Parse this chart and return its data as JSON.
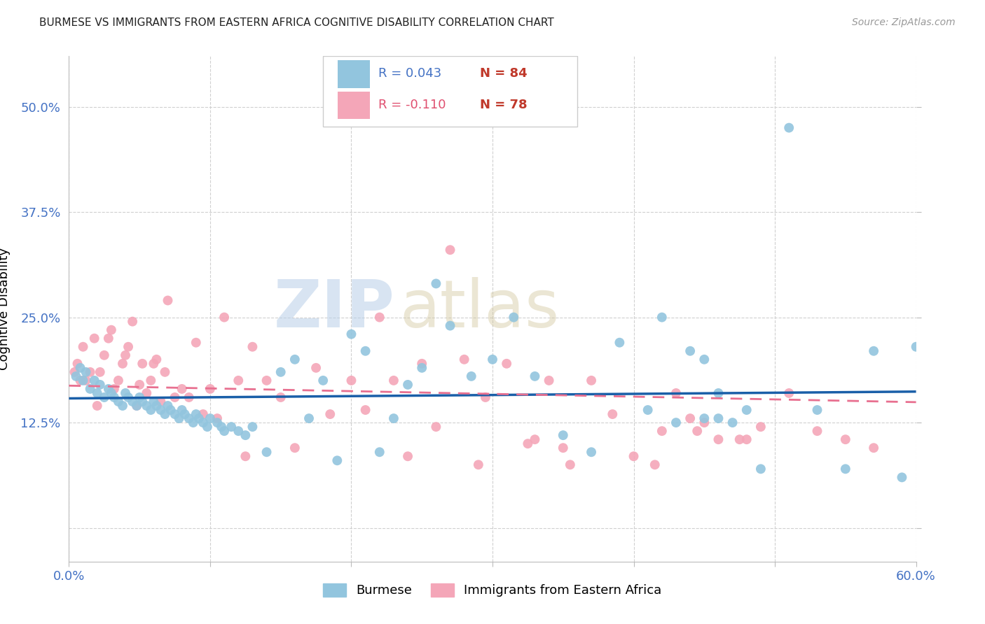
{
  "title": "BURMESE VS IMMIGRANTS FROM EASTERN AFRICA COGNITIVE DISABILITY CORRELATION CHART",
  "source": "Source: ZipAtlas.com",
  "ylabel": "Cognitive Disability",
  "xlim": [
    0.0,
    0.6
  ],
  "ylim": [
    -0.04,
    0.56
  ],
  "yticks": [
    0.0,
    0.125,
    0.25,
    0.375,
    0.5
  ],
  "ytick_labels": [
    "",
    "12.5%",
    "25.0%",
    "37.5%",
    "50.0%"
  ],
  "xticks": [
    0.0,
    0.1,
    0.2,
    0.3,
    0.4,
    0.5,
    0.6
  ],
  "xtick_labels": [
    "0.0%",
    "",
    "",
    "",
    "",
    "",
    "60.0%"
  ],
  "blue_R": 0.043,
  "blue_N": 84,
  "pink_R": -0.11,
  "pink_N": 78,
  "blue_color": "#92c5de",
  "pink_color": "#f4a6b8",
  "blue_line_color": "#1a5fa8",
  "pink_line_color": "#e87090",
  "watermark_zip": "ZIP",
  "watermark_atlas": "atlas",
  "legend_label_blue": "Burmese",
  "legend_label_pink": "Immigrants from Eastern Africa",
  "legend_R_color_blue": "#4472c4",
  "legend_N_color_blue": "#c0392b",
  "legend_R_color_pink": "#e05070",
  "legend_N_color_pink": "#c0392b",
  "blue_scatter_x": [
    0.005,
    0.008,
    0.01,
    0.012,
    0.015,
    0.018,
    0.02,
    0.022,
    0.025,
    0.028,
    0.03,
    0.032,
    0.035,
    0.038,
    0.04,
    0.042,
    0.045,
    0.048,
    0.05,
    0.052,
    0.055,
    0.058,
    0.06,
    0.062,
    0.065,
    0.068,
    0.07,
    0.072,
    0.075,
    0.078,
    0.08,
    0.082,
    0.085,
    0.088,
    0.09,
    0.092,
    0.095,
    0.098,
    0.1,
    0.105,
    0.108,
    0.11,
    0.115,
    0.12,
    0.125,
    0.13,
    0.14,
    0.15,
    0.16,
    0.17,
    0.18,
    0.19,
    0.2,
    0.21,
    0.22,
    0.23,
    0.24,
    0.25,
    0.26,
    0.27,
    0.285,
    0.3,
    0.315,
    0.33,
    0.35,
    0.37,
    0.39,
    0.41,
    0.43,
    0.45,
    0.46,
    0.47,
    0.49,
    0.51,
    0.53,
    0.45,
    0.55,
    0.57,
    0.59,
    0.6,
    0.42,
    0.44,
    0.46,
    0.48
  ],
  "blue_scatter_y": [
    0.18,
    0.19,
    0.175,
    0.185,
    0.165,
    0.175,
    0.16,
    0.17,
    0.155,
    0.165,
    0.16,
    0.155,
    0.15,
    0.145,
    0.16,
    0.155,
    0.15,
    0.145,
    0.155,
    0.15,
    0.145,
    0.14,
    0.15,
    0.145,
    0.14,
    0.135,
    0.145,
    0.14,
    0.135,
    0.13,
    0.14,
    0.135,
    0.13,
    0.125,
    0.135,
    0.13,
    0.125,
    0.12,
    0.13,
    0.125,
    0.12,
    0.115,
    0.12,
    0.115,
    0.11,
    0.12,
    0.09,
    0.185,
    0.2,
    0.13,
    0.175,
    0.08,
    0.23,
    0.21,
    0.09,
    0.13,
    0.17,
    0.19,
    0.29,
    0.24,
    0.18,
    0.2,
    0.25,
    0.18,
    0.11,
    0.09,
    0.22,
    0.14,
    0.125,
    0.13,
    0.16,
    0.125,
    0.07,
    0.475,
    0.14,
    0.2,
    0.07,
    0.21,
    0.06,
    0.215,
    0.25,
    0.21,
    0.13,
    0.14
  ],
  "pink_scatter_x": [
    0.004,
    0.006,
    0.008,
    0.01,
    0.012,
    0.015,
    0.018,
    0.02,
    0.022,
    0.025,
    0.028,
    0.03,
    0.032,
    0.035,
    0.038,
    0.04,
    0.042,
    0.045,
    0.048,
    0.05,
    0.052,
    0.055,
    0.058,
    0.06,
    0.062,
    0.065,
    0.068,
    0.07,
    0.075,
    0.08,
    0.085,
    0.09,
    0.095,
    0.1,
    0.105,
    0.11,
    0.12,
    0.125,
    0.13,
    0.14,
    0.15,
    0.16,
    0.175,
    0.185,
    0.2,
    0.21,
    0.22,
    0.23,
    0.24,
    0.25,
    0.26,
    0.27,
    0.28,
    0.295,
    0.31,
    0.325,
    0.34,
    0.355,
    0.37,
    0.385,
    0.4,
    0.415,
    0.43,
    0.445,
    0.46,
    0.475,
    0.49,
    0.51,
    0.53,
    0.55,
    0.57,
    0.48,
    0.44,
    0.42,
    0.35,
    0.33,
    0.29,
    0.45
  ],
  "pink_scatter_y": [
    0.185,
    0.195,
    0.175,
    0.215,
    0.175,
    0.185,
    0.225,
    0.145,
    0.185,
    0.205,
    0.225,
    0.235,
    0.165,
    0.175,
    0.195,
    0.205,
    0.215,
    0.245,
    0.145,
    0.17,
    0.195,
    0.16,
    0.175,
    0.195,
    0.2,
    0.15,
    0.185,
    0.27,
    0.155,
    0.165,
    0.155,
    0.22,
    0.135,
    0.165,
    0.13,
    0.25,
    0.175,
    0.085,
    0.215,
    0.175,
    0.155,
    0.095,
    0.19,
    0.135,
    0.175,
    0.14,
    0.25,
    0.175,
    0.085,
    0.195,
    0.12,
    0.33,
    0.2,
    0.155,
    0.195,
    0.1,
    0.175,
    0.075,
    0.175,
    0.135,
    0.085,
    0.075,
    0.16,
    0.115,
    0.105,
    0.105,
    0.12,
    0.16,
    0.115,
    0.105,
    0.095,
    0.105,
    0.13,
    0.115,
    0.095,
    0.105,
    0.075,
    0.125
  ]
}
